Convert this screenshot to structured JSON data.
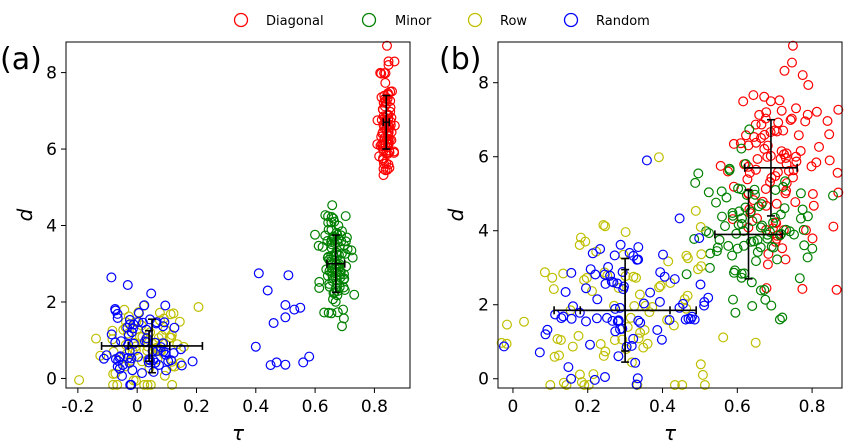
{
  "legend": [
    {
      "label": "Diagonal",
      "color": "#ff0000"
    },
    {
      "label": "Minor",
      "color": "#008000"
    },
    {
      "label": "Row",
      "color": "#bfbf00"
    },
    {
      "label": "Random",
      "color": "#0000ff"
    }
  ],
  "chart_data": [
    {
      "type": "scatter",
      "panel_label": "(a)",
      "xlabel": "τ",
      "ylabel": "d",
      "xlim": [
        -0.24,
        0.92
      ],
      "ylim": [
        -0.25,
        8.8
      ],
      "xticks": [
        -0.2,
        0.0,
        0.2,
        0.4,
        0.6,
        0.8
      ],
      "xtick_labels": [
        "-0.2",
        "0",
        "0.2",
        "0.4",
        "0.6",
        "0.8"
      ],
      "yticks": [
        0,
        2,
        4,
        6,
        8
      ],
      "ytick_labels": [
        "0",
        "2",
        "4",
        "6",
        "8"
      ],
      "marker": "open-circle",
      "series": [
        {
          "name": "Diagonal",
          "color": "#ff0000",
          "cluster": {
            "center": [
              0.84,
              6.7
            ],
            "spread": [
              0.012,
              0.8
            ],
            "count": 90
          },
          "errorbar": {
            "x": 0.84,
            "y": 6.7,
            "xerr": 0.01,
            "yerr": 0.7
          }
        },
        {
          "name": "Minor",
          "color": "#008000",
          "cluster": {
            "center": [
              0.67,
              3.05
            ],
            "spread": [
              0.025,
              0.8
            ],
            "count": 100
          },
          "errorbar": {
            "x": 0.67,
            "y": 3.0,
            "xerr": 0.03,
            "yerr": 0.75
          }
        },
        {
          "name": "Row",
          "color": "#bfbf00",
          "cluster": {
            "center": [
              0.02,
              0.9
            ],
            "spread": [
              0.08,
              0.55
            ],
            "count": 75
          },
          "errorbar": {
            "x": 0.05,
            "y": 0.85,
            "xerr": 0.17,
            "yerr": 0.7
          }
        },
        {
          "name": "Random",
          "color": "#0000ff",
          "cluster": {
            "center": [
              0.02,
              0.9
            ],
            "spread": [
              0.06,
              0.6
            ],
            "count": 75
          },
          "extra_points": [
            [
              0.41,
              2.75
            ],
            [
              0.44,
              2.3
            ],
            [
              0.46,
              1.45
            ],
            [
              0.51,
              2.7
            ],
            [
              0.5,
              1.92
            ],
            [
              0.5,
              1.6
            ],
            [
              0.53,
              1.8
            ],
            [
              0.55,
              1.85
            ],
            [
              0.4,
              0.83
            ],
            [
              0.47,
              0.42
            ],
            [
              0.5,
              0.36
            ],
            [
              0.56,
              0.42
            ],
            [
              0.58,
              0.57
            ],
            [
              0.45,
              0.35
            ]
          ],
          "errorbar": {
            "x": 0.04,
            "y": 0.85,
            "xerr": 0.07,
            "yerr": 0.4
          }
        }
      ]
    },
    {
      "type": "scatter",
      "panel_label": "(b)",
      "xlabel": "τ",
      "ylabel": "d",
      "xlim": [
        -0.04,
        0.88
      ],
      "ylim": [
        -0.25,
        9.1
      ],
      "xticks": [
        0.0,
        0.2,
        0.4,
        0.6,
        0.8
      ],
      "xtick_labels": [
        "0",
        "0.2",
        "0.4",
        "0.6",
        "0.8"
      ],
      "yticks": [
        0,
        2,
        4,
        6,
        8
      ],
      "ytick_labels": [
        "0",
        "2",
        "4",
        "6",
        "8"
      ],
      "marker": "open-circle",
      "series": [
        {
          "name": "Diagonal",
          "color": "#ff0000",
          "cluster": {
            "center": [
              0.7,
              5.8
            ],
            "spread": [
              0.07,
              1.3
            ],
            "count": 110
          },
          "errorbar": {
            "x": 0.69,
            "y": 5.7,
            "xerr": 0.07,
            "yerr": 1.3
          }
        },
        {
          "name": "Minor",
          "color": "#008000",
          "cluster": {
            "center": [
              0.62,
              4.0
            ],
            "spread": [
              0.09,
              1.1
            ],
            "count": 95
          },
          "errorbar": {
            "x": 0.63,
            "y": 3.9,
            "xerr": 0.09,
            "yerr": 1.2
          }
        },
        {
          "name": "Row",
          "color": "#bfbf00",
          "cluster": {
            "center": [
              0.28,
              1.8
            ],
            "spread": [
              0.13,
              1.3
            ],
            "count": 85
          },
          "errorbar": {
            "x": 0.3,
            "y": 1.85,
            "xerr": 0.19,
            "yerr": 1.4
          }
        },
        {
          "name": "Random",
          "color": "#0000ff",
          "cluster": {
            "center": [
              0.3,
              1.8
            ],
            "spread": [
              0.12,
              1.2
            ],
            "count": 85
          },
          "errorbar": {
            "x": 0.3,
            "y": 1.85,
            "xerr": 0.12,
            "yerr": 1.1
          }
        }
      ]
    }
  ]
}
